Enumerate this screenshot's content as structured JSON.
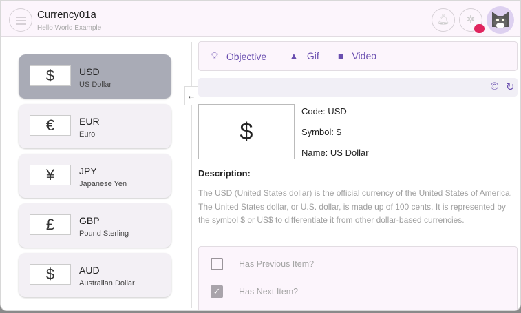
{
  "header": {
    "title": "Currency01a",
    "subtitle": "Hello World Example",
    "icons": [
      "menu-icon",
      "bell-icon",
      "bug-icon",
      "avatar"
    ]
  },
  "currencies": [
    {
      "symbol": "$",
      "code": "USD",
      "name": "US Dollar",
      "selected": true
    },
    {
      "symbol": "€",
      "code": "EUR",
      "name": "Euro"
    },
    {
      "symbol": "¥",
      "code": "JPY",
      "name": "Japanese Yen"
    },
    {
      "symbol": "£",
      "code": "GBP",
      "name": "Pound Sterling"
    },
    {
      "symbol": "$",
      "code": "AUD",
      "name": "Australian Dollar"
    }
  ],
  "tabs": [
    {
      "label": "Objective",
      "icon": "lightbulb-icon"
    },
    {
      "label": "Gif",
      "icon": "image-icon"
    },
    {
      "label": "Video",
      "icon": "videocam-icon"
    }
  ],
  "detail": {
    "symbol": "$",
    "code": "Code: USD",
    "symbol_line": "Symbol: $",
    "name": "Name: US Dollar",
    "description_heading": "Description:",
    "description": "The USD (United States dollar) is the official currency of the United States of America. The United States dollar, or U.S. dollar, is made up of 100 cents. It is represented by the symbol $ or US$ to differentiate it from other dollar-based currencies."
  },
  "checks": [
    {
      "label": "Has Previous Item?",
      "checked": false
    },
    {
      "label": "Has Next Item?",
      "checked": true
    }
  ],
  "colors": {
    "accent": "#6a4fb0",
    "selected_card": "#a9abb6",
    "header_bg": "#fcf5fc",
    "badge": "#e0245e"
  }
}
